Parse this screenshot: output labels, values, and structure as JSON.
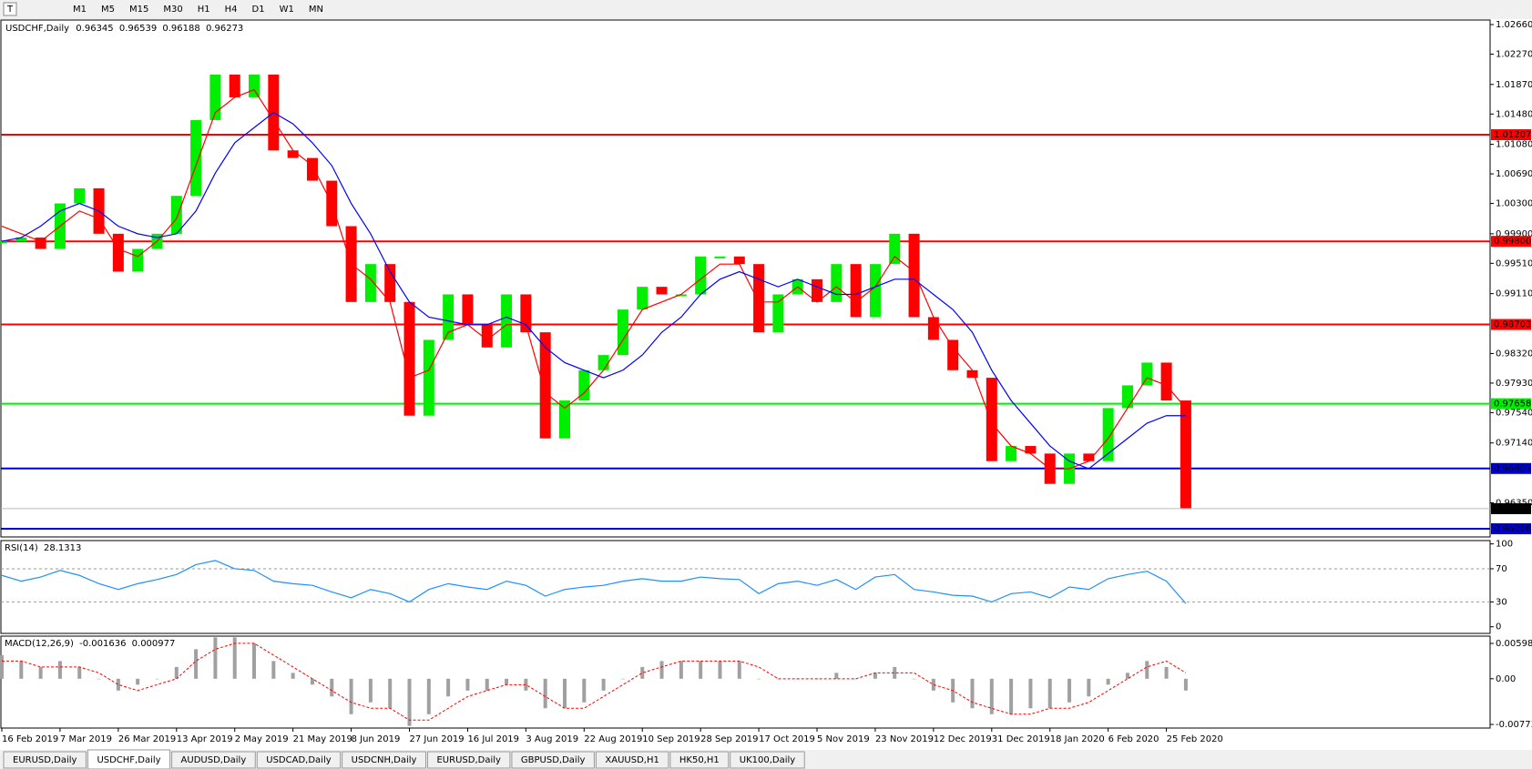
{
  "toolbar": [
    "M1",
    "M5",
    "M15",
    "M30",
    "H1",
    "H4",
    "D1",
    "W1",
    "MN"
  ],
  "tabs": {
    "items": [
      "EURUSD,Daily",
      "USDCHF,Daily",
      "AUDUSD,Daily",
      "USDCAD,Daily",
      "USDCNH,Daily",
      "EURUSD,Daily",
      "GBPUSD,Daily",
      "XAUUSD,H1",
      "HK50,H1",
      "UK100,Daily"
    ],
    "active": 1
  },
  "chart_data": [
    {
      "type": "candlestick",
      "title": "USDCHF,Daily",
      "ohlc": [
        0.96345,
        0.96539,
        0.96188,
        0.96273
      ],
      "categories": [
        "16 Feb 2019",
        null,
        null,
        "7 Mar 2019",
        null,
        null,
        "26 Mar 2019",
        null,
        null,
        "13 Apr 2019",
        null,
        null,
        "2 May 2019",
        null,
        null,
        "21 May 2019",
        null,
        null,
        "8 Jun 2019",
        null,
        null,
        "27 Jun 2019",
        null,
        null,
        "16 Jul 2019",
        null,
        null,
        "3 Aug 2019",
        null,
        null,
        "22 Aug 2019",
        null,
        null,
        "10 Sep 2019",
        null,
        null,
        "28 Sep 2019",
        null,
        null,
        "17 Oct 2019",
        null,
        null,
        "5 Nov 2019",
        null,
        null,
        "23 Nov 2019",
        null,
        null,
        "12 Dec 2019",
        null,
        null,
        "31 Dec 2019",
        null,
        null,
        "18 Jan 2020",
        null,
        null,
        "6 Feb 2020",
        null,
        null,
        "25 Feb 2020",
        null
      ],
      "values": [
        0.998,
        0.9985,
        0.997,
        1.003,
        1.005,
        0.999,
        0.994,
        0.997,
        0.999,
        1.004,
        1.014,
        1.02,
        1.017,
        1.02,
        1.01,
        1.009,
        1.006,
        1.0,
        0.99,
        0.995,
        0.99,
        0.975,
        0.985,
        0.991,
        0.987,
        0.984,
        0.991,
        0.986,
        0.972,
        0.977,
        0.981,
        0.983,
        0.989,
        0.992,
        0.991,
        0.991,
        0.996,
        0.996,
        0.995,
        0.986,
        0.991,
        0.993,
        0.99,
        0.995,
        0.988,
        0.995,
        0.999,
        0.988,
        0.985,
        0.981,
        0.98,
        0.969,
        0.971,
        0.97,
        0.966,
        0.97,
        0.969,
        0.976,
        0.979,
        0.982,
        0.977,
        0.9627
      ],
      "up_color": "#00ee00",
      "down_color": "#ff0000",
      "series": [
        {
          "color": "#ff0000",
          "values": [
            1.0,
            0.999,
            0.998,
            1.0,
            1.002,
            1.001,
            0.997,
            0.996,
            0.998,
            1.001,
            1.008,
            1.015,
            1.017,
            1.018,
            1.014,
            1.01,
            1.008,
            1.003,
            0.995,
            0.993,
            0.99,
            0.98,
            0.981,
            0.986,
            0.987,
            0.985,
            0.987,
            0.987,
            0.978,
            0.976,
            0.978,
            0.981,
            0.985,
            0.989,
            0.99,
            0.991,
            0.993,
            0.995,
            0.995,
            0.99,
            0.99,
            0.992,
            0.99,
            0.992,
            0.99,
            0.992,
            0.996,
            0.994,
            0.988,
            0.984,
            0.981,
            0.974,
            0.971,
            0.97,
            0.968,
            0.968,
            0.969,
            0.972,
            0.976,
            0.98,
            0.979,
            0.976
          ]
        },
        {
          "color": "#0000ff",
          "values": [
            0.998,
            0.9985,
            1.0,
            1.002,
            1.003,
            1.002,
            1.0,
            0.999,
            0.9985,
            0.999,
            1.002,
            1.007,
            1.011,
            1.013,
            1.015,
            1.0135,
            1.011,
            1.008,
            1.003,
            0.999,
            0.994,
            0.99,
            0.988,
            0.9875,
            0.987,
            0.987,
            0.988,
            0.987,
            0.984,
            0.982,
            0.981,
            0.98,
            0.981,
            0.983,
            0.986,
            0.988,
            0.991,
            0.993,
            0.994,
            0.993,
            0.992,
            0.993,
            0.992,
            0.991,
            0.991,
            0.992,
            0.993,
            0.993,
            0.991,
            0.989,
            0.986,
            0.981,
            0.977,
            0.974,
            0.971,
            0.969,
            0.968,
            0.97,
            0.972,
            0.974,
            0.975,
            0.975
          ]
        }
      ],
      "ylim": [
        0.959,
        1.0272
      ],
      "yticks": [
        {
          "value": 1.0266,
          "label": "1.02660"
        },
        {
          "value": 1.0227,
          "label": "1.02270"
        },
        {
          "value": 1.0187,
          "label": "1.01870"
        },
        {
          "value": 1.0148,
          "label": "1.01480"
        },
        {
          "value": 1.0108,
          "label": "1.01080"
        },
        {
          "value": 1.0069,
          "label": "1.00690"
        },
        {
          "value": 1.003,
          "label": "1.00300"
        },
        {
          "value": 0.999,
          "label": "0.99900"
        },
        {
          "value": 0.9951,
          "label": "0.99510"
        },
        {
          "value": 0.9911,
          "label": "0.99110"
        },
        {
          "value": 0.9832,
          "label": "0.98320"
        },
        {
          "value": 0.9793,
          "label": "0.97930"
        },
        {
          "value": 0.9754,
          "label": "0.97540"
        },
        {
          "value": 0.9714,
          "label": "0.97140"
        },
        {
          "value": 0.9635,
          "label": "0.96350"
        }
      ],
      "levels": [
        {
          "value": 1.01207,
          "label": "1.01207",
          "color": "#ff0000"
        },
        {
          "value": 0.998,
          "label": "0.99800",
          "color": "#ff0000"
        },
        {
          "value": 0.98703,
          "label": "0.98703",
          "color": "#ff0000"
        },
        {
          "value": 0.97658,
          "label": "0.97658",
          "color": "#00ee00"
        },
        {
          "value": 0.96803,
          "label": "0.96803",
          "color": "#0000cc"
        },
        {
          "value": 0.96008,
          "label": "0.96008",
          "color": "#0000cc"
        }
      ],
      "current": {
        "value": 0.96273,
        "label": "0.96273",
        "color": "#000000"
      }
    },
    {
      "type": "line",
      "title": "RSI(14)",
      "value": 28.1313,
      "color": "#1e90ff",
      "values": [
        62,
        55,
        60,
        68,
        62,
        52,
        45,
        52,
        57,
        63,
        75,
        80,
        70,
        68,
        55,
        52,
        50,
        42,
        35,
        45,
        40,
        30,
        45,
        52,
        48,
        45,
        55,
        50,
        37,
        45,
        48,
        50,
        55,
        58,
        55,
        55,
        60,
        58,
        57,
        40,
        52,
        55,
        50,
        57,
        45,
        60,
        63,
        45,
        42,
        38,
        37,
        30,
        40,
        42,
        35,
        48,
        45,
        58,
        63,
        67,
        55,
        28.13
      ],
      "ylim": [
        -8,
        104
      ],
      "yticks": [
        100,
        70,
        30,
        0
      ],
      "levels": [
        70,
        30
      ]
    },
    {
      "type": "macd",
      "title": "MACD(12,26,9)",
      "main": -0.001636,
      "signal_value": 0.000977,
      "values": [
        0.004,
        0.003,
        0.002,
        0.003,
        0.002,
        0.0,
        -0.002,
        -0.001,
        0.0,
        0.002,
        0.005,
        0.007,
        0.007,
        0.006,
        0.003,
        0.001,
        -0.001,
        -0.003,
        -0.006,
        -0.004,
        -0.005,
        -0.008,
        -0.006,
        -0.003,
        -0.002,
        -0.002,
        -0.001,
        -0.002,
        -0.005,
        -0.005,
        -0.004,
        -0.002,
        0.0,
        0.002,
        0.003,
        0.003,
        0.003,
        0.003,
        0.003,
        0.0,
        0.0,
        0.0,
        0.0,
        0.001,
        0.0,
        0.001,
        0.002,
        0.0,
        -0.002,
        -0.004,
        -0.005,
        -0.006,
        -0.006,
        -0.005,
        -0.005,
        -0.004,
        -0.003,
        -0.001,
        0.001,
        0.003,
        0.002,
        -0.002
      ],
      "signal": [
        0.003,
        0.003,
        0.002,
        0.002,
        0.002,
        0.001,
        -0.001,
        -0.002,
        -0.001,
        0.0,
        0.003,
        0.005,
        0.006,
        0.006,
        0.004,
        0.002,
        0.0,
        -0.002,
        -0.004,
        -0.005,
        -0.005,
        -0.007,
        -0.007,
        -0.005,
        -0.003,
        -0.002,
        -0.001,
        -0.001,
        -0.003,
        -0.005,
        -0.005,
        -0.003,
        -0.001,
        0.001,
        0.002,
        0.003,
        0.003,
        0.003,
        0.003,
        0.002,
        0.0,
        0.0,
        0.0,
        0.0,
        0.0,
        0.001,
        0.001,
        0.001,
        -0.001,
        -0.002,
        -0.004,
        -0.005,
        -0.006,
        -0.006,
        -0.005,
        -0.005,
        -0.004,
        -0.002,
        0.0,
        0.002,
        0.003,
        0.001
      ],
      "bar_color": "#a0a0a0",
      "signal_color": "#ff0000",
      "ylim": [
        -0.00835,
        0.00722
      ],
      "yticks": [
        0.005986,
        {
          "value": 0,
          "label": "0.00"
        },
        -0.007737
      ]
    }
  ]
}
